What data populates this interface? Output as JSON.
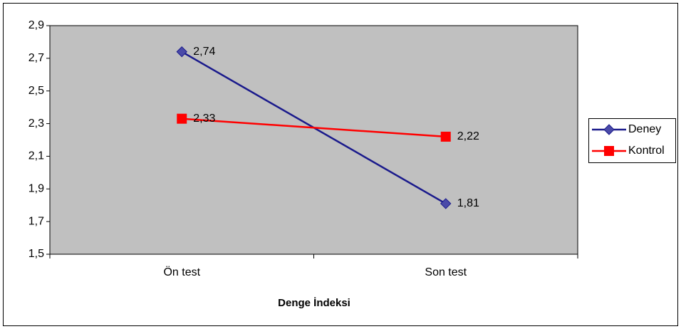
{
  "chart_data": {
    "type": "line",
    "x_label": "Denge İndeksi",
    "categories": [
      "Ön test",
      "Son test"
    ],
    "series": [
      {
        "name": "Deney",
        "color": "#1a1a8c",
        "marker": "diamond",
        "values": [
          2.74,
          1.81
        ],
        "value_labels": [
          "2,74",
          "1,81"
        ]
      },
      {
        "name": "Kontrol",
        "color": "#ff0000",
        "marker": "square",
        "values": [
          2.33,
          2.22
        ],
        "value_labels": [
          "2,33",
          "2,22"
        ]
      }
    ],
    "ylim": [
      1.5,
      2.9
    ],
    "yticks": [
      {
        "value": 1.5,
        "label": "1,5"
      },
      {
        "value": 1.7,
        "label": "1,7"
      },
      {
        "value": 1.9,
        "label": "1,9"
      },
      {
        "value": 2.1,
        "label": "2,1"
      },
      {
        "value": 2.3,
        "label": "2,3"
      },
      {
        "value": 2.5,
        "label": "2,5"
      },
      {
        "value": 2.7,
        "label": "2,7"
      },
      {
        "value": 2.9,
        "label": "2,9"
      }
    ],
    "legend": "right",
    "plot_background": "#c0c0c0"
  }
}
